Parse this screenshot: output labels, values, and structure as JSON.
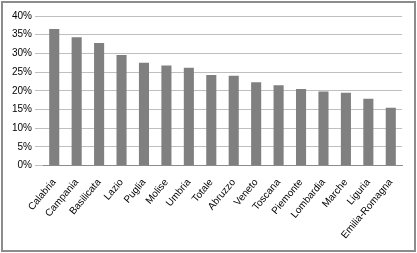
{
  "chart_data": {
    "type": "bar",
    "categories": [
      "Calabria",
      "Campania",
      "Basilicata",
      "Lazio",
      "Puglia",
      "Molise",
      "Umbria",
      "Totale",
      "Abruzzo",
      "Veneto",
      "Toscana",
      "Piemonte",
      "Lombardia",
      "Marche",
      "Liguria",
      "Emilia-Romagna"
    ],
    "values": [
      36.5,
      34.3,
      32.8,
      29.6,
      27.5,
      26.8,
      26.2,
      24.2,
      24.0,
      22.3,
      21.5,
      20.5,
      19.8,
      19.5,
      17.9,
      15.5
    ],
    "color": "#808080",
    "ylim": [
      0,
      40
    ],
    "yticks": [
      {
        "value": 0,
        "label": "0%"
      },
      {
        "value": 5,
        "label": "5%"
      },
      {
        "value": 10,
        "label": "10%"
      },
      {
        "value": 15,
        "label": "15%"
      },
      {
        "value": 20,
        "label": "20%"
      },
      {
        "value": 25,
        "label": "25%"
      },
      {
        "value": 30,
        "label": "30%"
      },
      {
        "value": 35,
        "label": "35%"
      },
      {
        "value": 40,
        "label": "40%"
      }
    ],
    "grid": true
  }
}
